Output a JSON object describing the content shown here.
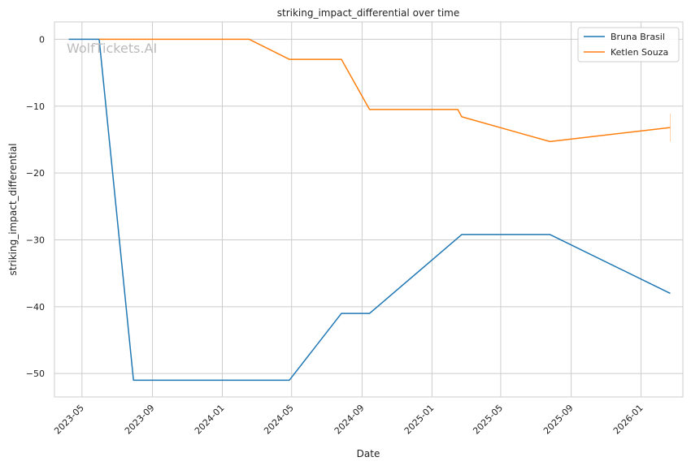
{
  "watermark": "WolfTickets.AI",
  "chart_data": {
    "type": "line",
    "title": "striking_impact_differential over time",
    "xlabel": "Date",
    "ylabel": "striking_impact_differential",
    "x_ticks": [
      "2023-05",
      "2023-09",
      "2024-01",
      "2024-05",
      "2024-09",
      "2025-01",
      "2025-05",
      "2025-09",
      "2026-01"
    ],
    "y_ticks": [
      0,
      -10,
      -20,
      -30,
      -40,
      -50
    ],
    "xlim": [
      "2023-03-14",
      "2026-03-15"
    ],
    "ylim": [
      -53.5,
      2.6
    ],
    "grid": true,
    "legend_position": "top-right",
    "series": [
      {
        "name": "Bruna Brasil",
        "color": "#1f77b4",
        "points": [
          {
            "x": "2023-04-08",
            "y": 0
          },
          {
            "x": "2023-05-20",
            "y": 0
          },
          {
            "x": "2023-05-31",
            "y": 0
          },
          {
            "x": "2023-07-30",
            "y": -51
          },
          {
            "x": "2024-04-27",
            "y": -51
          },
          {
            "x": "2024-07-27",
            "y": -41
          },
          {
            "x": "2024-09-14",
            "y": -41
          },
          {
            "x": "2025-02-22",
            "y": -29.2
          },
          {
            "x": "2025-07-26",
            "y": -29.2
          },
          {
            "x": "2026-02-21",
            "y": -38
          }
        ]
      },
      {
        "name": "Ketlen Souza",
        "color": "#ff7f0e",
        "points": [
          {
            "x": "2023-05-31",
            "y": 0
          },
          {
            "x": "2024-02-17",
            "y": 0
          },
          {
            "x": "2024-04-27",
            "y": -3
          },
          {
            "x": "2024-07-27",
            "y": -3
          },
          {
            "x": "2024-09-14",
            "y": -10.5
          },
          {
            "x": "2025-02-15",
            "y": -10.5
          },
          {
            "x": "2025-02-22",
            "y": -11.6
          },
          {
            "x": "2025-07-26",
            "y": -15.3
          },
          {
            "x": "2026-02-21",
            "y": -13.2
          }
        ]
      }
    ]
  }
}
